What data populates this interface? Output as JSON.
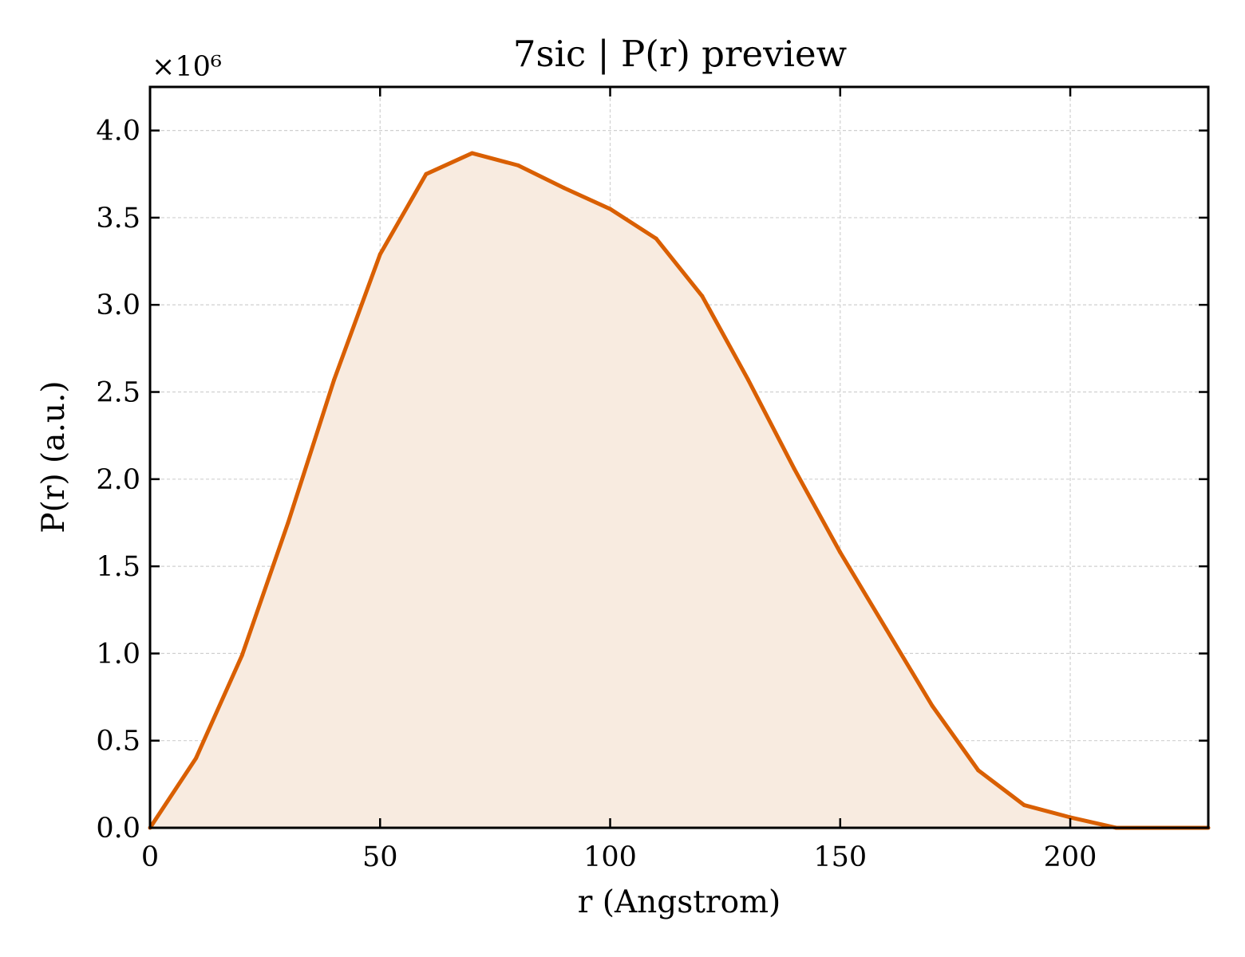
{
  "chart_data": {
    "type": "area",
    "title": "7sic | P(r) preview",
    "xlabel": "r (Angstrom)",
    "ylabel": "P(r) (a.u.)",
    "y_offset_label": "×10⁶",
    "y_multiplier": 1000000,
    "xlim": [
      0,
      230
    ],
    "ylim": [
      0,
      4.25
    ],
    "x_ticks": [
      0,
      50,
      100,
      150,
      200
    ],
    "x_tick_labels": [
      "0",
      "50",
      "100",
      "150",
      "200"
    ],
    "y_ticks": [
      0,
      0.5,
      1.0,
      1.5,
      2.0,
      2.5,
      3.0,
      3.5,
      4.0
    ],
    "y_tick_labels": [
      "0.0",
      "0.5",
      "1.0",
      "1.5",
      "2.0",
      "2.5",
      "3.0",
      "3.5",
      "4.0"
    ],
    "grid": true,
    "line_color": "#d95f02",
    "fill_color": "#f8ebe0",
    "series": [
      {
        "x": [
          0,
          10,
          20,
          30,
          40,
          50,
          60,
          70,
          80,
          90,
          100,
          110,
          120,
          130,
          140,
          150,
          160,
          170,
          180,
          190,
          200,
          210,
          220,
          230
        ],
        "y": [
          0.0,
          0.4,
          0.99,
          1.75,
          2.57,
          3.29,
          3.75,
          3.87,
          3.8,
          3.67,
          3.55,
          3.38,
          3.05,
          2.57,
          2.06,
          1.58,
          1.14,
          0.7,
          0.33,
          0.13,
          0.06,
          0.0,
          0.0,
          0.0
        ]
      }
    ]
  }
}
